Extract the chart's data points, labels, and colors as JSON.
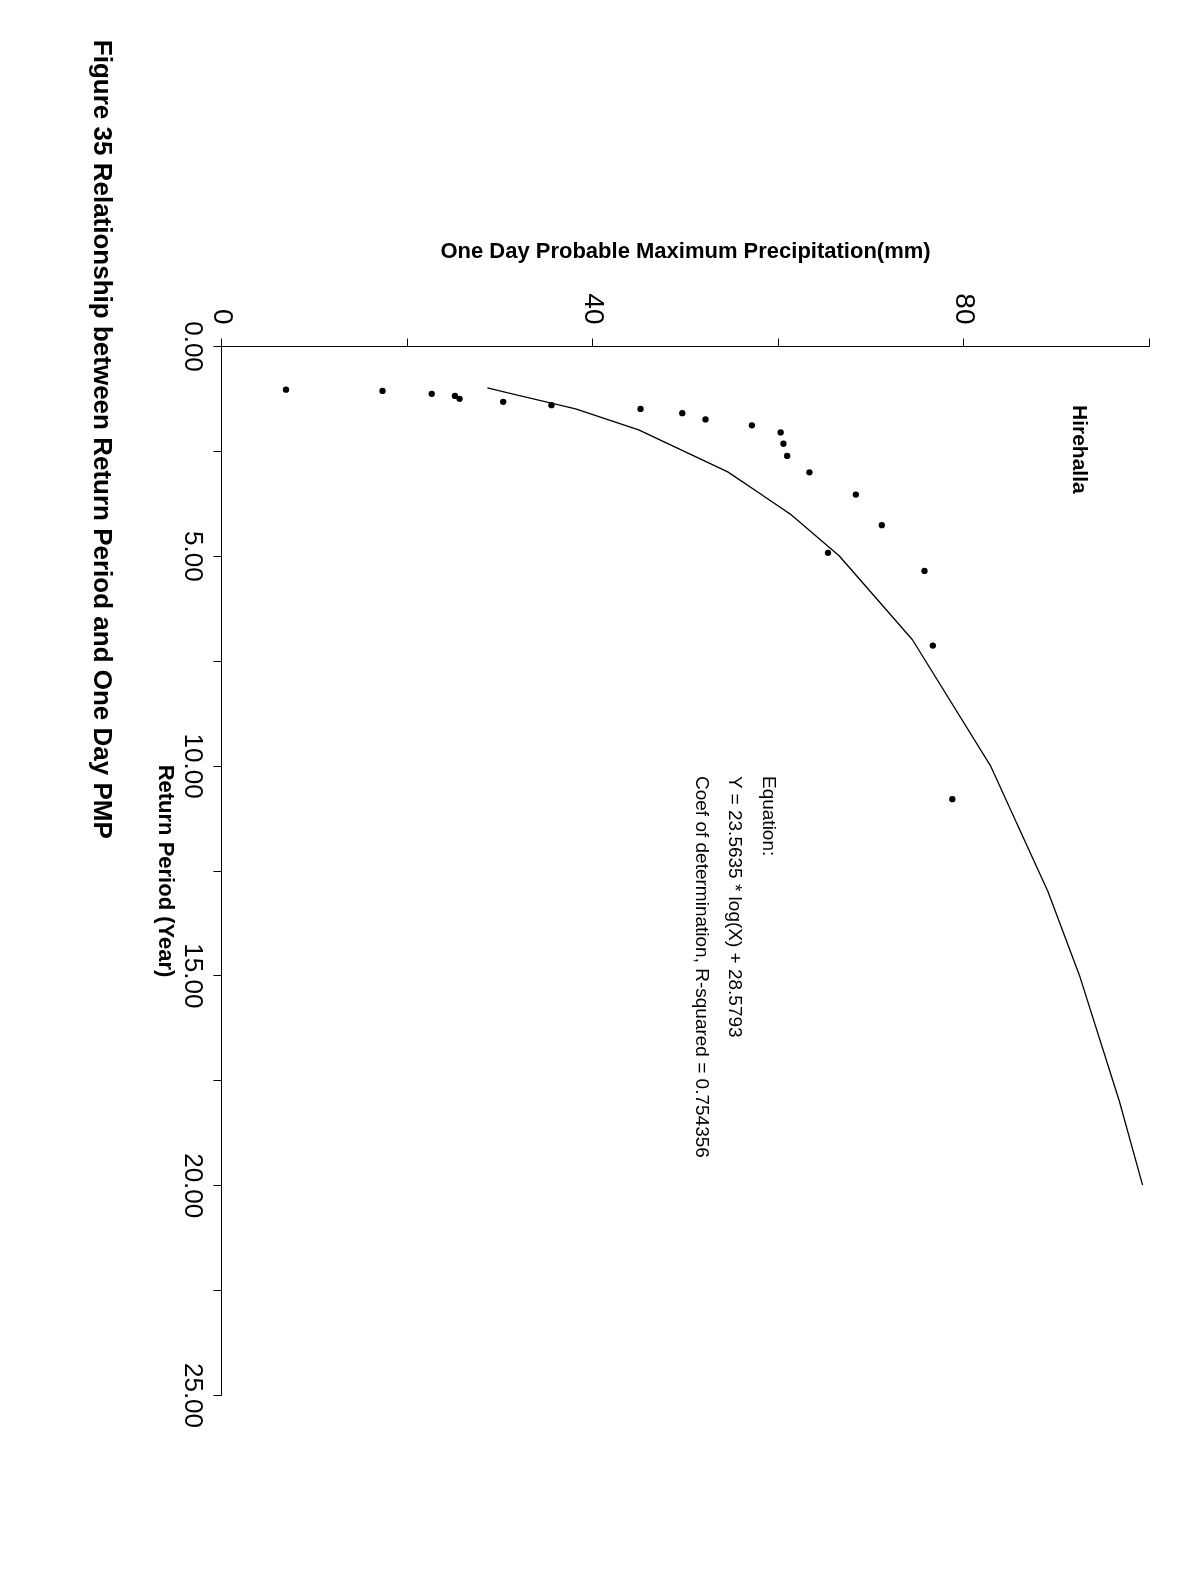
{
  "chart_data": {
    "type": "scatter",
    "title": "Figure 35 Relationship between Return Period and One Day PMP",
    "xlabel": "One Day Probable Maximum Precipitation(mm)",
    "ylabel": "Return Period (Year)",
    "xlim": [
      0,
      100
    ],
    "xticks": [
      0,
      {
        "value": 20,
        "label": null
      },
      40,
      {
        "value": 60,
        "label": null
      },
      80,
      {
        "value": 100,
        "label": null
      }
    ],
    "ylim": [
      25,
      0
    ],
    "yticks": [
      {
        "value": 0,
        "label": "0.00"
      },
      {
        "value": 2.5,
        "label": null
      },
      {
        "value": 5,
        "label": "5.00"
      },
      {
        "value": 7.5,
        "label": null
      },
      {
        "value": 10,
        "label": "10.00"
      },
      {
        "value": 12.5,
        "label": null
      },
      {
        "value": 15,
        "label": "15.00"
      },
      {
        "value": 17.5,
        "label": null
      },
      {
        "value": 20,
        "label": "20.00"
      },
      {
        "value": 22.5,
        "label": null
      },
      {
        "value": 25,
        "label": "25.00"
      }
    ],
    "series": [
      {
        "color": "#000000",
        "marker": "circle",
        "x": [
          6.9,
          17.3,
          22.6,
          25.1,
          25.6,
          30.3,
          35.5,
          45.1,
          49.6,
          52.1,
          57.1,
          60.2,
          60.5,
          60.9,
          63.3,
          68.3,
          71.1,
          65.3,
          75.7,
          76.6,
          78.7
        ],
        "values": [
          1.04,
          1.07,
          1.14,
          1.19,
          1.26,
          1.33,
          1.41,
          1.5,
          1.6,
          1.75,
          1.89,
          2.06,
          2.33,
          2.62,
          3.01,
          3.54,
          4.27,
          4.93,
          5.36,
          7.14,
          10.8
        ]
      },
      {
        "type": "line",
        "color": "#000000",
        "x": [
          28.6,
          38.1,
          44.9,
          54.5,
          61.2,
          66.5,
          74.4,
          82.8,
          89.0,
          92.4,
          96.7,
          99.2
        ],
        "values": [
          1,
          1.5,
          2,
          3,
          4,
          5,
          7,
          10,
          13,
          15,
          18,
          20
        ]
      }
    ],
    "annotations": [
      "Hirehalla",
      "Equation:",
      "Y = 23.5635 * log(X) + 28.5793",
      "Coef of determination, R-squared = 0.754356"
    ]
  }
}
